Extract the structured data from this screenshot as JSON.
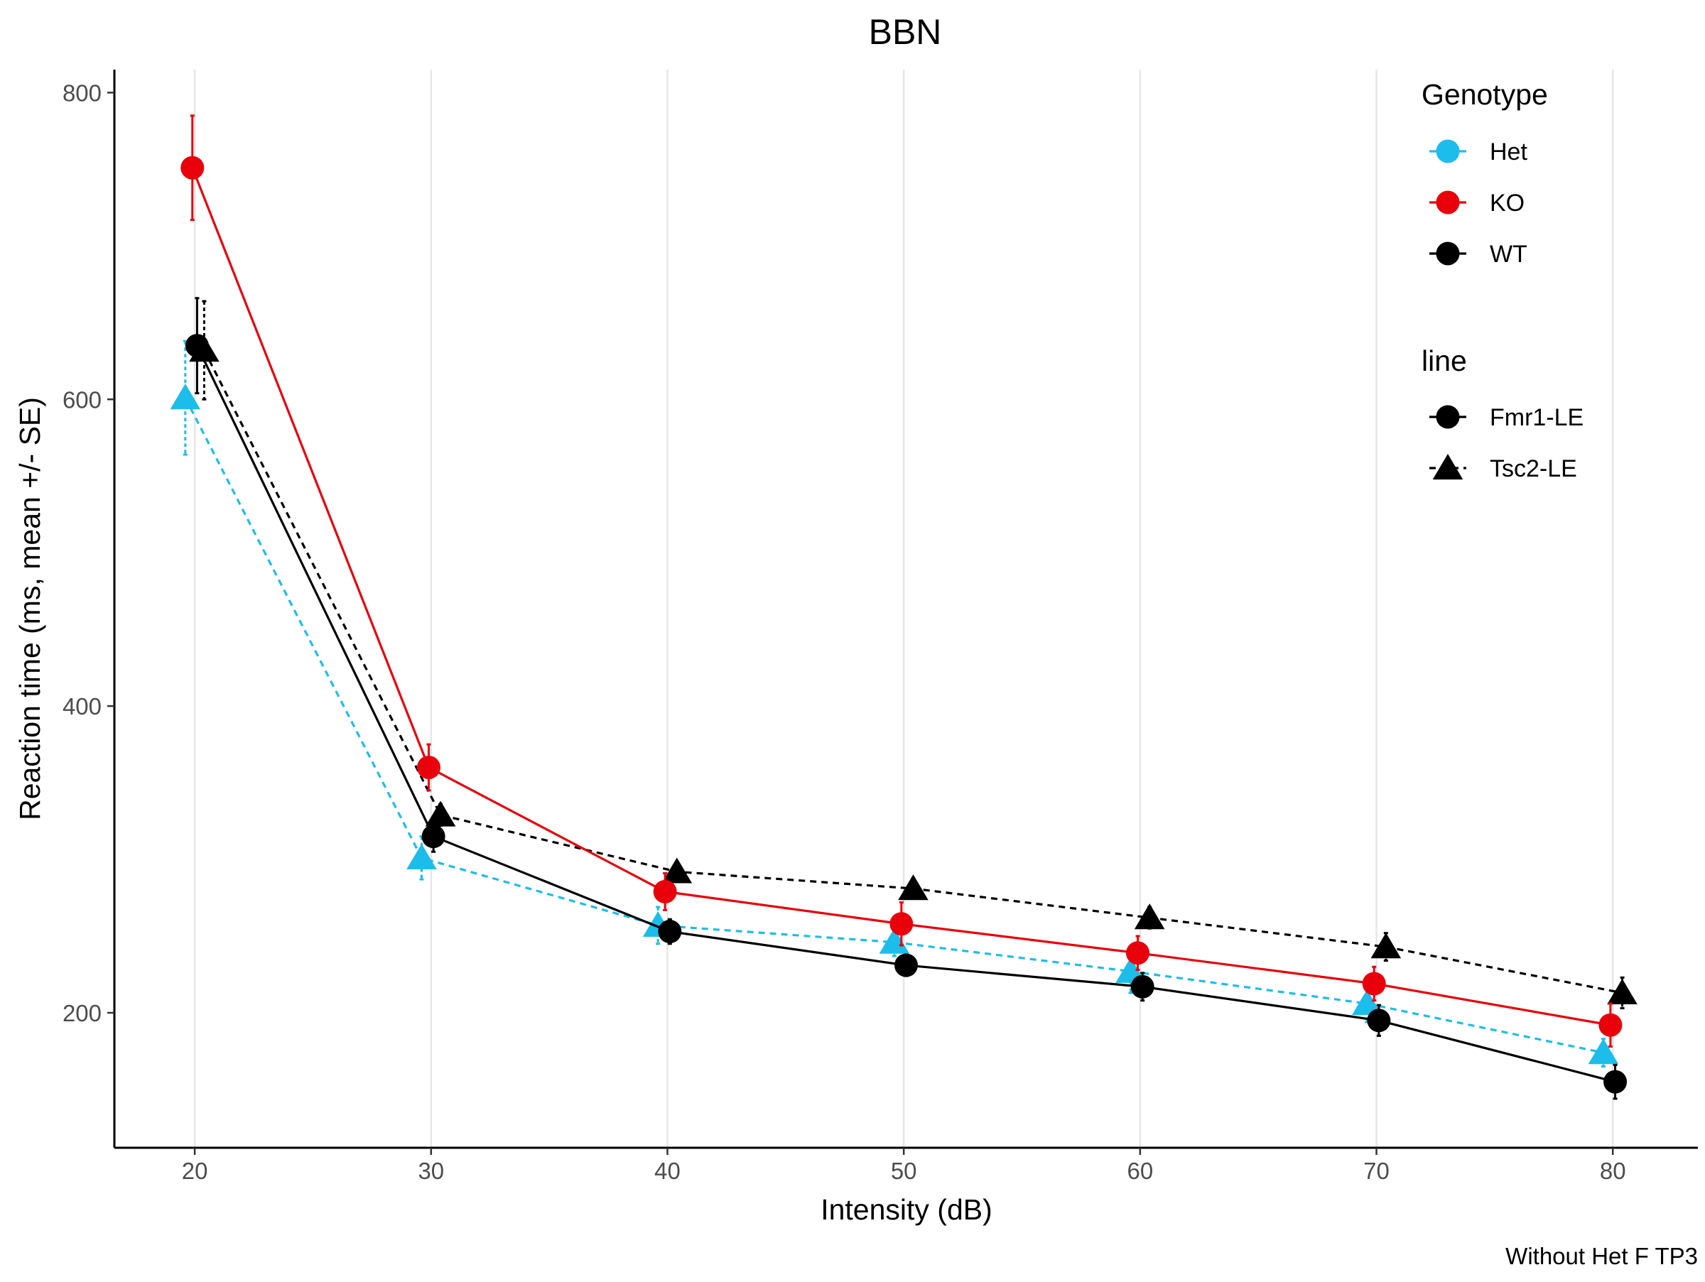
{
  "chart_data": {
    "type": "line",
    "title": "BBN",
    "xlabel": "Intensity (dB)",
    "ylabel": "Reaction time (ms, mean +/- SE)",
    "caption": "Without Het F TP3",
    "xlim": [
      16.6,
      83.6
    ],
    "ylim": [
      112,
      815
    ],
    "x_ticks": [
      20,
      30,
      40,
      50,
      60,
      70,
      80
    ],
    "y_ticks": [
      200,
      400,
      600,
      800
    ],
    "grid": "vertical major lines only",
    "colors": {
      "Het": "#1cbdea",
      "KO": "#e8000b",
      "WT": "#000000"
    },
    "legend": {
      "position": "top-right",
      "genotype_title": "Genotype",
      "genotype_items": [
        "Het",
        "KO",
        "WT"
      ],
      "line_title": "line",
      "line_items": [
        "Fmr1-LE",
        "Tsc2-LE"
      ]
    },
    "series": [
      {
        "name": "KO / Fmr1-LE",
        "genotype": "KO",
        "line": "Fmr1-LE",
        "x": [
          19.9,
          29.9,
          39.9,
          49.9,
          59.9,
          69.9,
          79.9
        ],
        "y": [
          751,
          360,
          279,
          258,
          239,
          219,
          192
        ],
        "se": [
          34,
          15,
          12,
          14,
          11,
          11,
          14
        ]
      },
      {
        "name": "WT / Fmr1-LE",
        "genotype": "WT",
        "line": "Fmr1-LE",
        "x": [
          20.1,
          30.1,
          40.1,
          50.1,
          60.1,
          70.1,
          80.1
        ],
        "y": [
          635,
          315,
          253,
          231,
          217,
          195,
          155
        ],
        "se": [
          31,
          10,
          8,
          7,
          9,
          10,
          11
        ]
      },
      {
        "name": "Het / Tsc2-LE",
        "genotype": "Het",
        "line": "Tsc2-LE",
        "x": [
          19.6,
          29.6,
          39.6,
          49.6,
          59.6,
          69.6,
          79.6
        ],
        "y": [
          601,
          301,
          257,
          246,
          227,
          206,
          174
        ],
        "se": [
          37,
          14,
          12,
          9,
          14,
          12,
          9
        ]
      },
      {
        "name": "WT / Tsc2-LE",
        "genotype": "WT",
        "line": "Tsc2-LE",
        "x": [
          20.4,
          30.4,
          40.4,
          50.4,
          60.4,
          70.4,
          80.4
        ],
        "y": [
          632,
          329,
          292,
          281,
          262,
          243,
          213
        ],
        "se": [
          32,
          7,
          6,
          5,
          7,
          9,
          10
        ]
      }
    ]
  }
}
